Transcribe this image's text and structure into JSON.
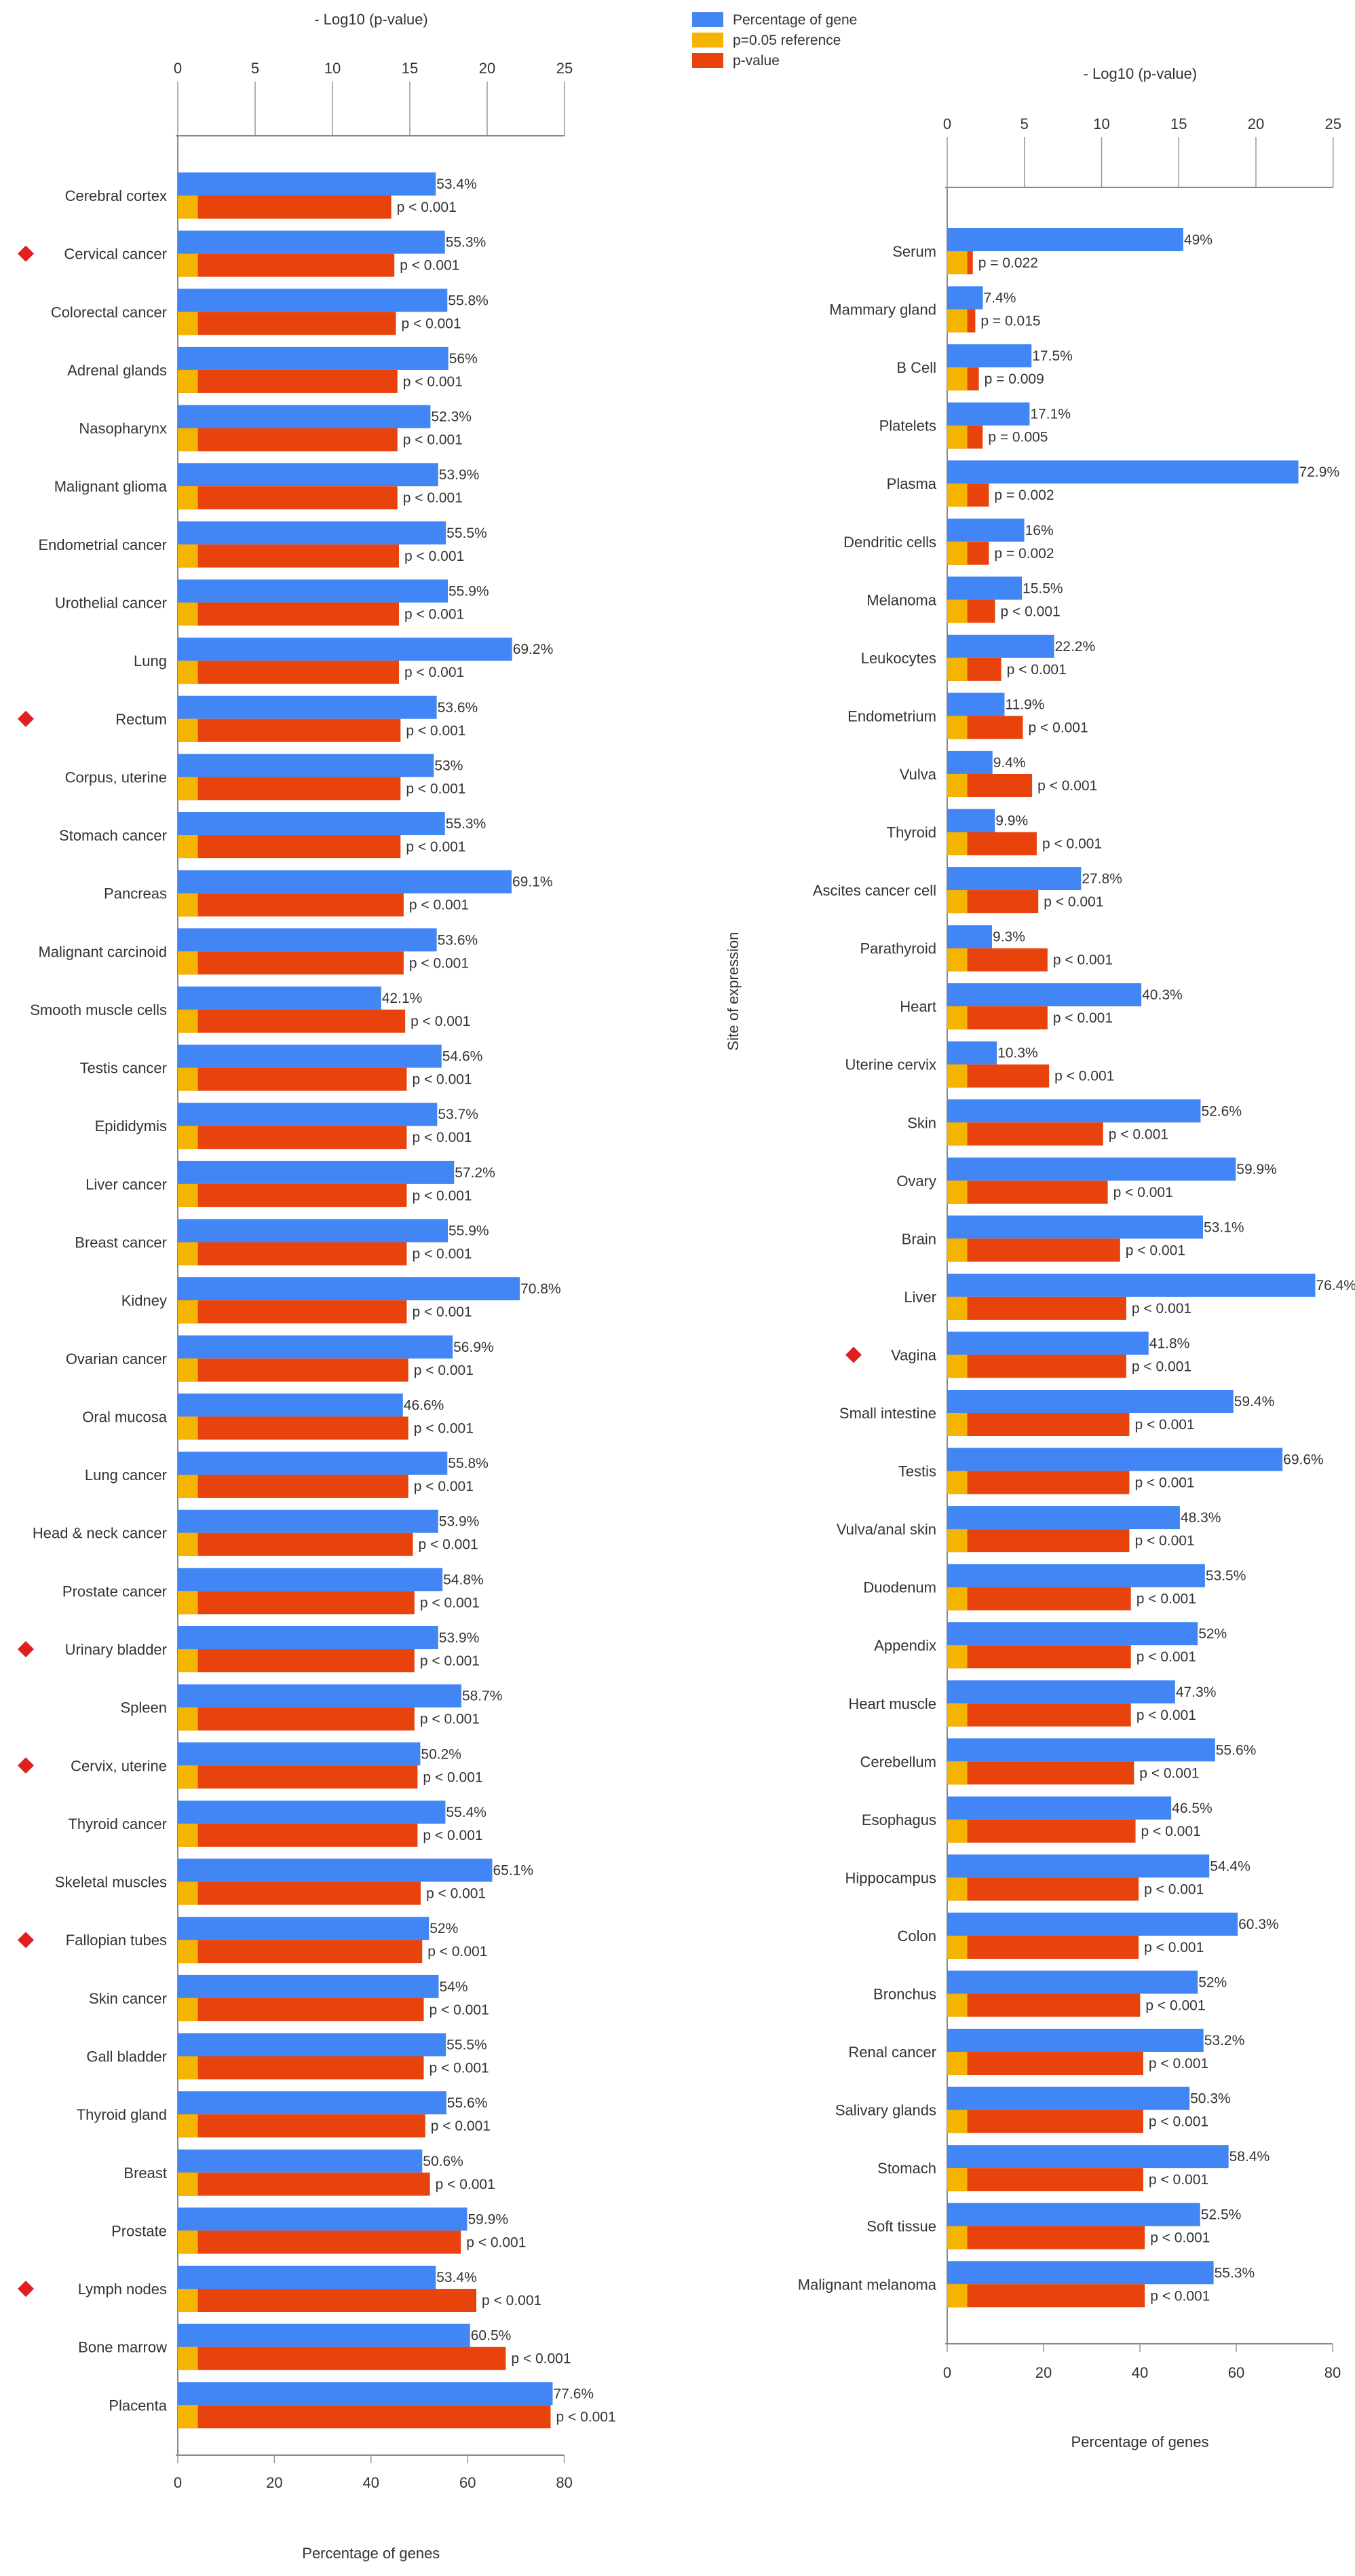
{
  "legend": {
    "entries": [
      {
        "label": "Percentage of gene",
        "color": "#4285f4"
      },
      {
        "label": "p=0.05 reference",
        "color": "#f4b400"
      },
      {
        "label": "p-value",
        "color": "#e8430c"
      }
    ]
  },
  "chart_data": [
    {
      "type": "bar",
      "orientation": "horizontal",
      "top_axis_label": "- Log10 (p-value)",
      "top_axis_range": [
        0,
        25
      ],
      "top_axis_ticks": [
        "0",
        "5",
        "10",
        "15",
        "20",
        "25"
      ],
      "xlabel": "Percentage of genes",
      "xlim": [
        0,
        80
      ],
      "x_ticks": [
        "0",
        "20",
        "40",
        "60",
        "80"
      ],
      "ylabel": "",
      "reference_value_neglog10": 1.3,
      "categories": [
        "Cerebral cortex",
        "Cervical cancer",
        "Colorectal cancer",
        "Adrenal glands",
        "Nasopharynx",
        "Malignant glioma",
        "Endometrial cancer",
        "Urothelial cancer",
        "Lung",
        "Rectum",
        "Corpus, uterine",
        "Stomach cancer",
        "Pancreas",
        "Malignant carcinoid",
        "Smooth muscle cells",
        "Testis cancer",
        "Epididymis",
        "Liver cancer",
        "Breast cancer",
        "Kidney",
        "Ovarian cancer",
        "Oral mucosa",
        "Lung cancer",
        "Head & neck cancer",
        "Prostate cancer",
        "Urinary bladder",
        "Spleen",
        "Cervix, uterine",
        "Thyroid cancer",
        "Skeletal muscles",
        "Fallopian tubes",
        "Skin cancer",
        "Gall bladder",
        "Thyroid gland",
        "Breast",
        "Prostate",
        "Lymph nodes",
        "Bone marrow",
        "Placenta"
      ],
      "marked": [
        false,
        true,
        false,
        false,
        false,
        false,
        false,
        false,
        false,
        true,
        false,
        false,
        false,
        false,
        false,
        false,
        false,
        false,
        false,
        false,
        false,
        false,
        false,
        false,
        false,
        true,
        false,
        true,
        false,
        false,
        true,
        false,
        false,
        false,
        false,
        false,
        true,
        false,
        false
      ],
      "series": [
        {
          "name": "Percentage of gene",
          "values": [
            53.4,
            55.3,
            55.8,
            56,
            52.3,
            53.9,
            55.5,
            55.9,
            69.2,
            53.6,
            53,
            55.3,
            69.1,
            53.6,
            42.1,
            54.6,
            53.7,
            57.2,
            55.9,
            70.8,
            56.9,
            46.6,
            55.8,
            53.9,
            54.8,
            53.9,
            58.7,
            50.2,
            55.4,
            65.1,
            52,
            54,
            55.5,
            55.6,
            50.6,
            59.9,
            53.4,
            60.5,
            77.6
          ],
          "labels": [
            "53.4%",
            "55.3%",
            "55.8%",
            "56%",
            "52.3%",
            "53.9%",
            "55.5%",
            "55.9%",
            "69.2%",
            "53.6%",
            "53%",
            "55.3%",
            "69.1%",
            "53.6%",
            "42.1%",
            "54.6%",
            "53.7%",
            "57.2%",
            "55.9%",
            "70.8%",
            "56.9%",
            "46.6%",
            "55.8%",
            "53.9%",
            "54.8%",
            "53.9%",
            "58.7%",
            "50.2%",
            "55.4%",
            "65.1%",
            "52%",
            "54%",
            "55.5%",
            "55.6%",
            "50.6%",
            "59.9%",
            "53.4%",
            "60.5%",
            "77.6%"
          ]
        },
        {
          "name": "p-value (-Log10)",
          "values": [
            13.8,
            14.0,
            14.1,
            14.2,
            14.2,
            14.2,
            14.3,
            14.3,
            14.3,
            14.4,
            14.4,
            14.4,
            14.6,
            14.6,
            14.7,
            14.8,
            14.8,
            14.8,
            14.8,
            14.8,
            14.9,
            14.9,
            14.9,
            15.2,
            15.3,
            15.3,
            15.3,
            15.5,
            15.5,
            15.7,
            15.8,
            15.9,
            15.9,
            16.0,
            16.3,
            18.3,
            19.3,
            21.2,
            24.1
          ],
          "labels": [
            "p < 0.001",
            "p < 0.001",
            "p < 0.001",
            "p < 0.001",
            "p < 0.001",
            "p < 0.001",
            "p < 0.001",
            "p < 0.001",
            "p < 0.001",
            "p < 0.001",
            "p < 0.001",
            "p < 0.001",
            "p < 0.001",
            "p < 0.001",
            "p < 0.001",
            "p < 0.001",
            "p < 0.001",
            "p < 0.001",
            "p < 0.001",
            "p < 0.001",
            "p < 0.001",
            "p < 0.001",
            "p < 0.001",
            "p < 0.001",
            "p < 0.001",
            "p < 0.001",
            "p < 0.001",
            "p < 0.001",
            "p < 0.001",
            "p < 0.001",
            "p < 0.001",
            "p < 0.001",
            "p < 0.001",
            "p < 0.001",
            "p < 0.001",
            "p < 0.001",
            "p < 0.001",
            "p < 0.001",
            "p < 0.001"
          ]
        }
      ]
    },
    {
      "type": "bar",
      "orientation": "horizontal",
      "top_axis_label": "- Log10 (p-value)",
      "top_axis_range": [
        0,
        25
      ],
      "top_axis_ticks": [
        "0",
        "5",
        "10",
        "15",
        "20",
        "25"
      ],
      "xlabel": "Percentage of genes",
      "xlim": [
        0,
        80
      ],
      "x_ticks": [
        "0",
        "20",
        "40",
        "60",
        "80"
      ],
      "ylabel": "Site of expression",
      "reference_value_neglog10": 1.3,
      "categories": [
        "Serum",
        "Mammary gland",
        "B Cell",
        "Platelets",
        "Plasma",
        "Dendritic cells",
        "Melanoma",
        "Leukocytes",
        "Endometrium",
        "Vulva",
        "Thyroid",
        "Ascites cancer cell",
        "Parathyroid",
        "Heart",
        "Uterine cervix",
        "Skin",
        "Ovary",
        "Brain",
        "Liver",
        "Vagina",
        "Small intestine",
        "Testis",
        "Vulva/anal skin",
        "Duodenum",
        "Appendix",
        "Heart muscle",
        "Cerebellum",
        "Esophagus",
        "Hippocampus",
        "Colon",
        "Bronchus",
        "Renal cancer",
        "Salivary glands",
        "Stomach",
        "Soft tissue",
        "Malignant melanoma"
      ],
      "marked": [
        false,
        false,
        false,
        false,
        false,
        false,
        false,
        false,
        false,
        false,
        false,
        false,
        false,
        false,
        false,
        false,
        false,
        false,
        false,
        true,
        false,
        false,
        false,
        false,
        false,
        false,
        false,
        false,
        false,
        false,
        false,
        false,
        false,
        false,
        false,
        false
      ],
      "series": [
        {
          "name": "Percentage of gene",
          "values": [
            49,
            7.4,
            17.5,
            17.1,
            72.9,
            16,
            15.5,
            22.2,
            11.9,
            9.4,
            9.9,
            27.8,
            9.3,
            40.3,
            10.3,
            52.6,
            59.9,
            53.1,
            76.4,
            41.8,
            59.4,
            69.6,
            48.3,
            53.5,
            52,
            47.3,
            55.6,
            46.5,
            54.4,
            60.3,
            52,
            53.2,
            50.3,
            58.4,
            52.5,
            55.3
          ],
          "labels": [
            "49%",
            "7.4%",
            "17.5%",
            "17.1%",
            "72.9%",
            "16%",
            "15.5%",
            "22.2%",
            "11.9%",
            "9.4%",
            "9.9%",
            "27.8%",
            "9.3%",
            "40.3%",
            "10.3%",
            "52.6%",
            "59.9%",
            "53.1%",
            "76.4%",
            "41.8%",
            "59.4%",
            "69.6%",
            "48.3%",
            "53.5%",
            "52%",
            "47.3%",
            "55.6%",
            "46.5%",
            "54.4%",
            "60.3%",
            "52%",
            "53.2%",
            "50.3%",
            "58.4%",
            "52.5%",
            "55.3%"
          ]
        },
        {
          "name": "p-value (-Log10)",
          "values": [
            1.66,
            1.82,
            2.05,
            2.3,
            2.7,
            2.7,
            3.1,
            3.5,
            4.9,
            5.5,
            5.8,
            5.9,
            6.5,
            6.5,
            6.6,
            10.1,
            10.4,
            11.2,
            11.6,
            11.6,
            11.8,
            11.8,
            11.8,
            11.9,
            11.9,
            11.9,
            12.1,
            12.2,
            12.4,
            12.4,
            12.5,
            12.7,
            12.7,
            12.7,
            12.8,
            12.8
          ],
          "labels": [
            "p = 0.022",
            "p = 0.015",
            "p = 0.009",
            "p = 0.005",
            "p = 0.002",
            "p = 0.002",
            "p < 0.001",
            "p < 0.001",
            "p < 0.001",
            "p < 0.001",
            "p < 0.001",
            "p < 0.001",
            "p < 0.001",
            "p < 0.001",
            "p < 0.001",
            "p < 0.001",
            "p < 0.001",
            "p < 0.001",
            "p < 0.001",
            "p < 0.001",
            "p < 0.001",
            "p < 0.001",
            "p < 0.001",
            "p < 0.001",
            "p < 0.001",
            "p < 0.001",
            "p < 0.001",
            "p < 0.001",
            "p < 0.001",
            "p < 0.001",
            "p < 0.001",
            "p < 0.001",
            "p < 0.001",
            "p < 0.001",
            "p < 0.001",
            "p < 0.001"
          ]
        }
      ]
    }
  ]
}
